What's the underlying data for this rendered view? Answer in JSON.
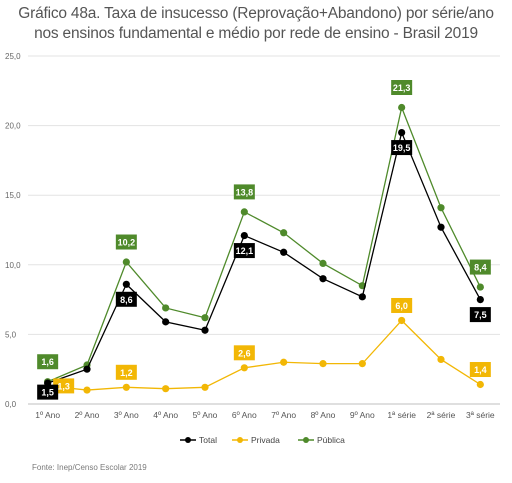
{
  "title_line1": "Gráfico 48a. Taxa de insucesso (Reprovação+Abandono) por série/ano",
  "title_line2": "nos ensinos fundamental e médio por rede de ensino - Brasil 2019",
  "source": "Fonte: Inep/Censo Escolar 2019",
  "chart_data": {
    "type": "line",
    "title": "Gráfico 48a. Taxa de insucesso (Reprovação+Abandono) por série/ano nos ensinos fundamental e médio por rede de ensino - Brasil 2019",
    "xlabel": "",
    "ylabel": "",
    "ylim": [
      0,
      25
    ],
    "yticks": [
      "0,0",
      "5,0",
      "10,0",
      "15,0",
      "20,0",
      "25,0"
    ],
    "categories": [
      "1º Ano",
      "2º Ano",
      "3º Ano",
      "4º Ano",
      "5º Ano",
      "6º Ano",
      "7º Ano",
      "8º Ano",
      "9º Ano",
      "1ª série",
      "2ª série",
      "3ª série"
    ],
    "grid": true,
    "legend_position": "bottom",
    "series": [
      {
        "name": "Total",
        "color": "#000000",
        "values": [
          1.5,
          2.5,
          8.6,
          5.9,
          5.3,
          12.1,
          10.9,
          9.0,
          7.7,
          19.5,
          12.7,
          7.5
        ],
        "labels": {
          "0": "1,5",
          "2": "8,6",
          "5": "12,1",
          "9": "19,5",
          "11": "7,5"
        }
      },
      {
        "name": "Privada",
        "color": "#f2b705",
        "values": [
          1.3,
          1.0,
          1.2,
          1.1,
          1.2,
          2.6,
          3.0,
          2.9,
          2.9,
          6.0,
          3.2,
          1.4
        ],
        "labels": {
          "0": "1,3",
          "2": "1,2",
          "5": "2,6",
          "9": "6,0",
          "11": "1,4"
        }
      },
      {
        "name": "Pública",
        "color": "#4f8a2b",
        "values": [
          1.6,
          2.8,
          10.2,
          6.9,
          6.2,
          13.8,
          12.3,
          10.1,
          8.5,
          21.3,
          14.1,
          8.4
        ],
        "labels": {
          "0": "1,6",
          "2": "10,2",
          "5": "13,8",
          "9": "21,3",
          "11": "8,4"
        }
      }
    ]
  }
}
